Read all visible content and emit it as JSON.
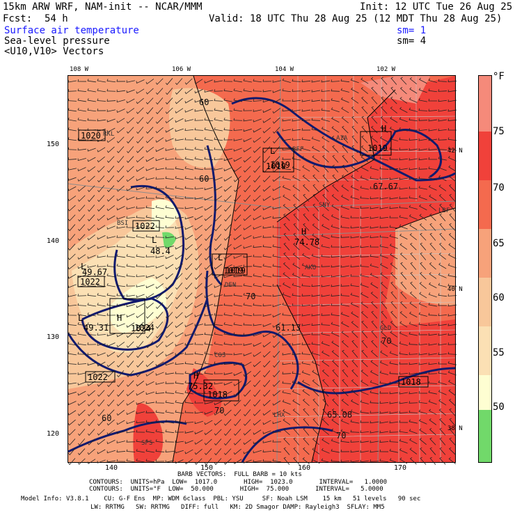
{
  "header": {
    "model": "15km ARW WRF, NAM-init -- NCAR/MMM",
    "init": "Init: 12 UTC Tue 26 Aug 25",
    "fcst_label": "Fcst:",
    "fcst_value": "54 h",
    "valid": "Valid: 18 UTC Thu 28 Aug 25 (12 MDT Thu 28 Aug 25)",
    "field1": "Surface air temperature",
    "field1_sm": "sm= 1",
    "field2": "Sea-level pressure",
    "field2_sm": "sm= 4",
    "field3": "<U10,V10> Vectors"
  },
  "map": {
    "lon_labels": [
      "108 W",
      "106 W",
      "104 W",
      "102 W"
    ],
    "lat_labels": [
      "42 N",
      "40 N",
      "38 N"
    ],
    "grid_y": [
      "150",
      "140",
      "130",
      "120"
    ],
    "grid_x": [
      "140",
      "150",
      "160",
      "170"
    ],
    "highs_lows": [
      {
        "mark": "L",
        "value": "49.67"
      },
      {
        "mark": "L",
        "value": "49.31"
      },
      {
        "mark": "H",
        "value": "1024"
      },
      {
        "mark": "L",
        "value": "48.4"
      },
      {
        "mark": "H",
        "value": "74.78"
      },
      {
        "mark": "H",
        "value": "75.32"
      },
      {
        "mark": "L",
        "value": "1019"
      },
      {
        "mark": "H",
        "value": "1019"
      },
      {
        "mark": "L",
        "value": "1019"
      },
      {
        "mark": "H",
        "value": "1018"
      }
    ],
    "pressure_boxes": [
      "1020",
      "1022",
      "1022",
      "1019",
      "1019",
      "1024",
      "1022",
      "1018",
      "1019",
      "1018"
    ],
    "temp_contour_labels": [
      "60",
      "60",
      "70",
      "70",
      "70",
      "61.13",
      "67.67",
      "65.08",
      "70",
      "60"
    ],
    "stations": [
      "RKL",
      "BFF",
      "AIA",
      "SNY",
      "BSI",
      "AKO",
      "DEN",
      "GLD",
      "COS",
      "LHX",
      "LBF",
      "SPS"
    ]
  },
  "colorbar": {
    "unit": "°F",
    "labels": [
      "75",
      "70",
      "65",
      "60",
      "55",
      "50"
    ],
    "colors": [
      "#f58a7a",
      "#f0413a",
      "#f46a4e",
      "#f7a27a",
      "#f8c79a",
      "#fbe0b4",
      "#fefed2",
      "#b4ec9a",
      "#71d96a"
    ]
  },
  "footer": {
    "barb": "BARB VECTORS:  FULL BARB = 10 kts",
    "contours1": "CONTOURS:  UNITS=hPa  LOW=  1017.0       HIGH=  1023.0       INTERVAL=   1.0000",
    "contours2": "CONTOURS:  UNITS=°F  LOW=  50.000       HIGH=  75.000       INTERVAL=   5.0000",
    "model_info": "Model Info: V3.8.1    CU: G-F Ens  MP: WDM 6class  PBL: YSU     SF: Noah LSM    15 km   51 levels   90 sec",
    "model_info2": "LW: RRTMG   SW: RRTMG   DIFF: full   KM: 2D Smagor DAMP: Rayleigh3  SFLAY: MM5"
  }
}
